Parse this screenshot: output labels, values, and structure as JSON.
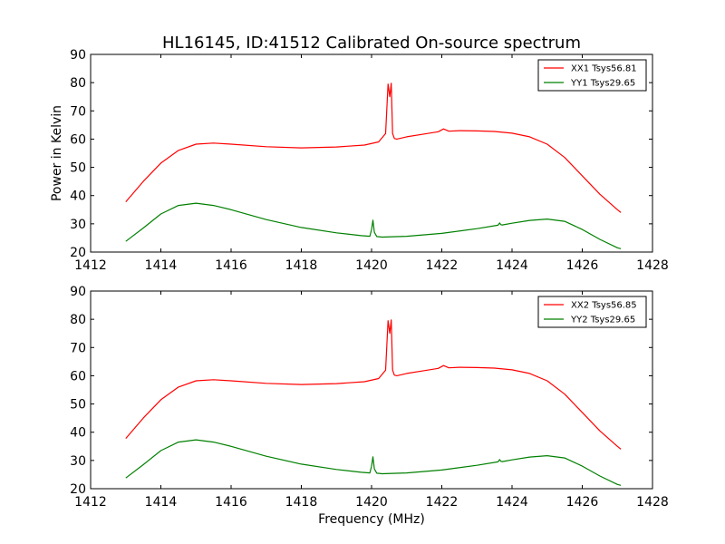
{
  "figure": {
    "title": "HL16145, ID:41512 Calibrated On-source spectrum",
    "xlabel": "Frequency (MHz)",
    "ylabel": "Power in Kelvin"
  },
  "colors": {
    "xx": "#ff0000",
    "yy": "#008000"
  },
  "chart_data": [
    {
      "type": "line",
      "xlim": [
        1412,
        1428
      ],
      "ylim": [
        20,
        90
      ],
      "xticks": [
        1412,
        1414,
        1416,
        1418,
        1420,
        1422,
        1424,
        1426,
        1428
      ],
      "yticks": [
        20,
        30,
        40,
        50,
        60,
        70,
        80,
        90
      ],
      "ylabel": "Power in Kelvin",
      "legend_position": "top-right",
      "series": [
        {
          "name": "XX1 Tsys56.81",
          "color": "#ff0000",
          "x": [
            1413.0,
            1413.5,
            1414.0,
            1414.5,
            1415.0,
            1415.5,
            1416.0,
            1417.0,
            1418.0,
            1419.0,
            1419.8,
            1420.2,
            1420.4,
            1420.47,
            1420.52,
            1420.56,
            1420.6,
            1420.65,
            1420.72,
            1421.0,
            1421.5,
            1421.9,
            1422.05,
            1422.2,
            1422.5,
            1423.0,
            1423.5,
            1424.0,
            1424.5,
            1425.0,
            1425.5,
            1426.0,
            1426.5,
            1427.0,
            1427.1
          ],
          "y": [
            37.8,
            45.0,
            51.5,
            56.0,
            58.2,
            58.6,
            58.2,
            57.3,
            56.9,
            57.2,
            57.9,
            59.0,
            62.0,
            79.5,
            75.0,
            79.8,
            62.0,
            60.2,
            60.0,
            60.8,
            61.8,
            62.6,
            63.6,
            62.8,
            63.0,
            62.9,
            62.7,
            62.1,
            60.8,
            58.2,
            53.5,
            47.0,
            40.5,
            35.0,
            34.0
          ]
        },
        {
          "name": "YY1 Tsys29.65",
          "color": "#008000",
          "x": [
            1413.0,
            1413.5,
            1414.0,
            1414.5,
            1415.0,
            1415.5,
            1416.0,
            1417.0,
            1418.0,
            1419.0,
            1419.7,
            1419.95,
            1420.0,
            1420.04,
            1420.08,
            1420.15,
            1420.3,
            1421.0,
            1422.0,
            1423.0,
            1423.6,
            1423.65,
            1423.68,
            1423.72,
            1424.0,
            1424.5,
            1425.0,
            1425.5,
            1426.0,
            1426.5,
            1427.0,
            1427.1
          ],
          "y": [
            23.8,
            28.5,
            33.5,
            36.5,
            37.3,
            36.5,
            35.0,
            31.5,
            28.7,
            26.8,
            25.8,
            25.6,
            28.0,
            31.3,
            27.0,
            25.5,
            25.3,
            25.6,
            26.6,
            28.3,
            29.5,
            30.3,
            29.7,
            29.6,
            30.2,
            31.2,
            31.7,
            30.9,
            28.0,
            24.5,
            21.5,
            21.2
          ]
        }
      ]
    },
    {
      "type": "line",
      "xlim": [
        1412,
        1428
      ],
      "ylim": [
        20,
        90
      ],
      "xticks": [
        1412,
        1414,
        1416,
        1418,
        1420,
        1422,
        1424,
        1426,
        1428
      ],
      "yticks": [
        20,
        30,
        40,
        50,
        60,
        70,
        80,
        90
      ],
      "xlabel": "Frequency (MHz)",
      "legend_position": "top-right",
      "series": [
        {
          "name": "XX2 Tsys56.85",
          "color": "#ff0000",
          "x": [
            1413.0,
            1413.5,
            1414.0,
            1414.5,
            1415.0,
            1415.5,
            1416.0,
            1417.0,
            1418.0,
            1419.0,
            1419.8,
            1420.2,
            1420.4,
            1420.47,
            1420.52,
            1420.56,
            1420.6,
            1420.65,
            1420.72,
            1421.0,
            1421.5,
            1421.9,
            1422.05,
            1422.2,
            1422.5,
            1423.0,
            1423.5,
            1424.0,
            1424.5,
            1425.0,
            1425.5,
            1426.0,
            1426.5,
            1427.0,
            1427.1
          ],
          "y": [
            37.8,
            45.0,
            51.5,
            56.0,
            58.2,
            58.6,
            58.2,
            57.3,
            56.9,
            57.2,
            57.9,
            59.0,
            62.0,
            79.5,
            75.0,
            79.8,
            62.0,
            60.2,
            60.0,
            60.8,
            61.8,
            62.6,
            63.6,
            62.8,
            63.0,
            62.9,
            62.7,
            62.1,
            60.8,
            58.2,
            53.5,
            47.0,
            40.5,
            35.0,
            34.0
          ]
        },
        {
          "name": "YY2 Tsys29.65",
          "color": "#008000",
          "x": [
            1413.0,
            1413.5,
            1414.0,
            1414.5,
            1415.0,
            1415.5,
            1416.0,
            1417.0,
            1418.0,
            1419.0,
            1419.7,
            1419.95,
            1420.0,
            1420.04,
            1420.08,
            1420.15,
            1420.3,
            1421.0,
            1422.0,
            1423.0,
            1423.6,
            1423.65,
            1423.68,
            1423.72,
            1424.0,
            1424.5,
            1425.0,
            1425.5,
            1426.0,
            1426.5,
            1427.0,
            1427.1
          ],
          "y": [
            23.8,
            28.5,
            33.5,
            36.5,
            37.3,
            36.5,
            35.0,
            31.5,
            28.7,
            26.8,
            25.8,
            25.6,
            28.0,
            31.3,
            27.0,
            25.5,
            25.3,
            25.6,
            26.6,
            28.3,
            29.5,
            30.3,
            29.7,
            29.6,
            30.2,
            31.2,
            31.7,
            30.9,
            28.0,
            24.5,
            21.5,
            21.2
          ]
        }
      ]
    }
  ]
}
